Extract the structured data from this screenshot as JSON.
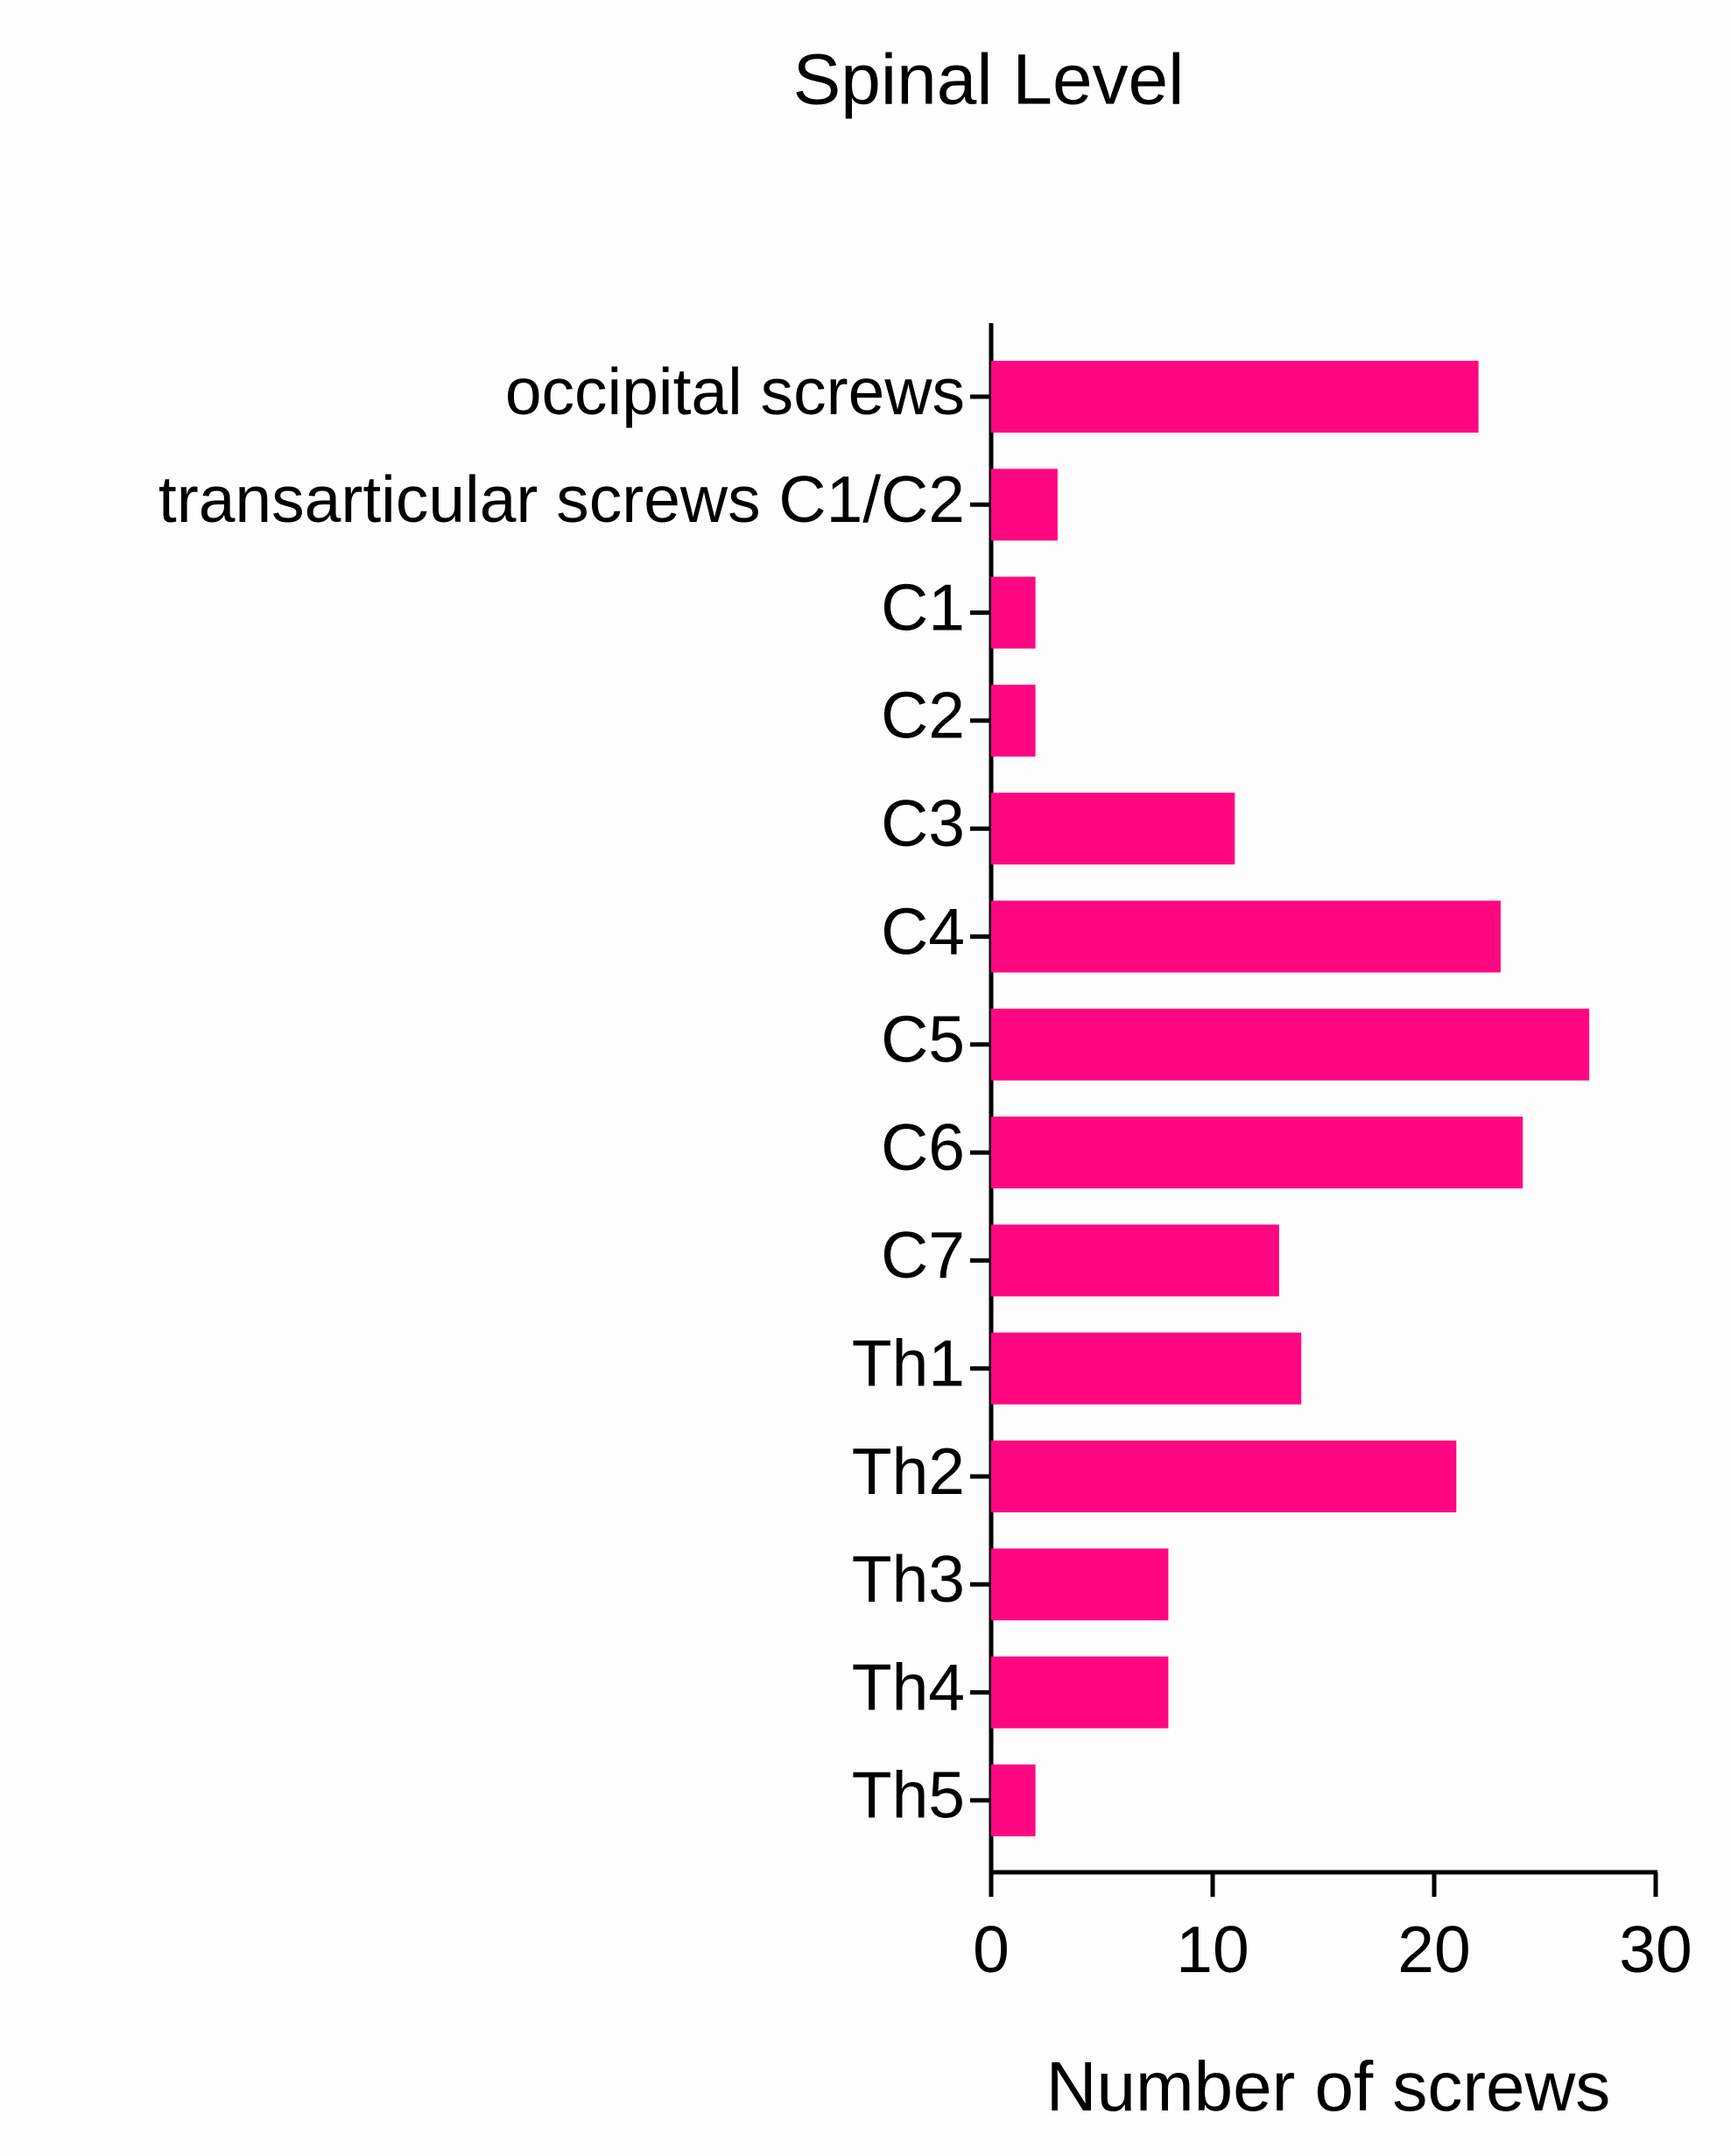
{
  "chart_data": {
    "type": "bar",
    "orientation": "horizontal",
    "title": "Spinal Level",
    "x_label": "Number of screws",
    "categories": [
      "occipital screws",
      "transarticular screws C1/C2",
      "C1",
      "C2",
      "C3",
      "C4",
      "C5",
      "C6",
      "C7",
      "Th1",
      "Th2",
      "Th3",
      "Th4",
      "Th5"
    ],
    "values": [
      22,
      3,
      2,
      2,
      11,
      23,
      27,
      24,
      13,
      14,
      21,
      8,
      8,
      2
    ],
    "color": "#ff0783",
    "xlim": [
      0,
      30
    ],
    "xticks": [
      0,
      10,
      20,
      30
    ],
    "grid": false
  }
}
